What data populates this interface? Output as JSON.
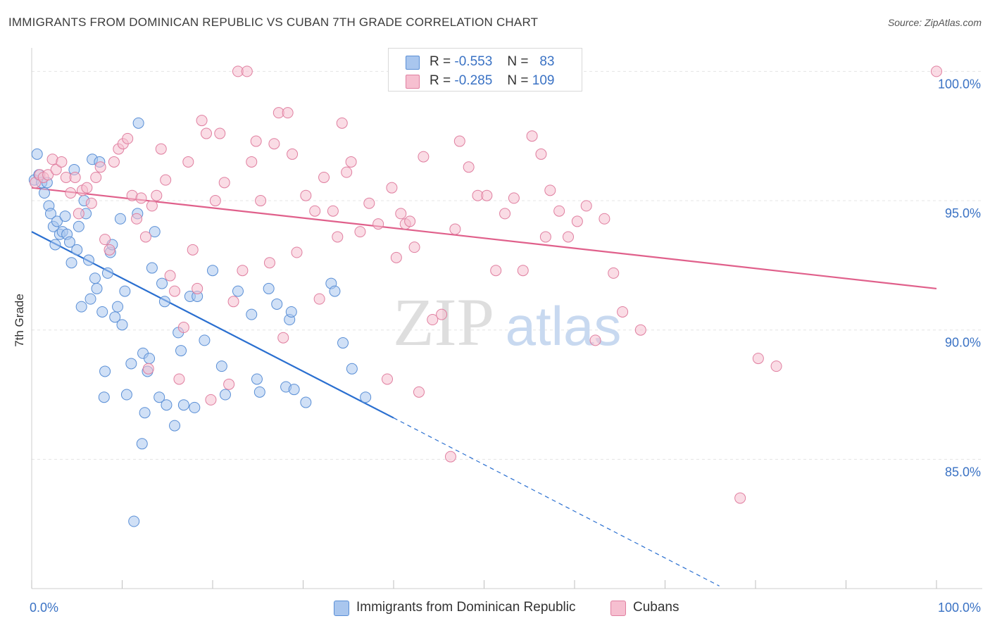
{
  "title": "IMMIGRANTS FROM DOMINICAN REPUBLIC VS CUBAN 7TH GRADE CORRELATION CHART",
  "source": "Source: ZipAtlas.com",
  "watermark": {
    "zip": "ZIP",
    "atlas": "atlas"
  },
  "legend": [
    {
      "r_label": "R =",
      "r_value": "-0.553",
      "n_label": "N =",
      "n_value": "83",
      "color": "#a9c6ee",
      "border": "#5a8fd6"
    },
    {
      "r_label": "R =",
      "r_value": "-0.285",
      "n_label": "N =",
      "n_value": "109",
      "color": "#f6bfd0",
      "border": "#e07fa0"
    }
  ],
  "chart_data": {
    "type": "scatter",
    "ylabel": "7th Grade",
    "xlabel": "",
    "xlim": [
      0,
      100
    ],
    "ylim": [
      80.0,
      100.8
    ],
    "x_tick_labels": [
      "0.0%",
      "100.0%"
    ],
    "y_ticks": [
      {
        "value": 100,
        "label": "100.0%"
      },
      {
        "value": 95,
        "label": "95.0%"
      },
      {
        "value": 90,
        "label": "90.0%"
      },
      {
        "value": 85,
        "label": "85.0%"
      }
    ],
    "series": [
      {
        "name": "Immigrants from Dominican Republic",
        "color": "#5a8fd6",
        "fill": "#a9c6ee",
        "trend": {
          "x0": 0,
          "y0": 93.8,
          "x1": 40,
          "y1": 86.6,
          "dash_to_x": 76,
          "dash_to_y": 80.1,
          "color": "#2a6fd0"
        },
        "points": [
          [
            0.3,
            95.8
          ],
          [
            0.6,
            96.8
          ],
          [
            0.8,
            96.0
          ],
          [
            1.1,
            95.7
          ],
          [
            1.4,
            95.3
          ],
          [
            1.7,
            95.7
          ],
          [
            1.9,
            94.8
          ],
          [
            2.1,
            94.5
          ],
          [
            2.4,
            94.0
          ],
          [
            2.6,
            93.3
          ],
          [
            2.8,
            94.2
          ],
          [
            3.1,
            93.7
          ],
          [
            3.4,
            93.8
          ],
          [
            3.7,
            94.4
          ],
          [
            3.9,
            93.7
          ],
          [
            4.2,
            93.4
          ],
          [
            4.4,
            92.6
          ],
          [
            4.7,
            96.2
          ],
          [
            5.0,
            93.1
          ],
          [
            5.2,
            94.0
          ],
          [
            5.5,
            90.9
          ],
          [
            5.8,
            95.0
          ],
          [
            6.0,
            94.5
          ],
          [
            6.3,
            92.7
          ],
          [
            6.5,
            91.2
          ],
          [
            6.7,
            96.6
          ],
          [
            7.0,
            92.0
          ],
          [
            7.2,
            91.6
          ],
          [
            7.5,
            96.5
          ],
          [
            7.8,
            90.7
          ],
          [
            8.1,
            88.4
          ],
          [
            8.4,
            92.2
          ],
          [
            8.7,
            93.0
          ],
          [
            8.9,
            93.3
          ],
          [
            9.2,
            90.5
          ],
          [
            9.5,
            90.9
          ],
          [
            9.8,
            94.3
          ],
          [
            10.0,
            90.2
          ],
          [
            10.3,
            91.5
          ],
          [
            10.5,
            87.5
          ],
          [
            11.0,
            88.7
          ],
          [
            11.3,
            82.6
          ],
          [
            11.7,
            94.5
          ],
          [
            11.8,
            98.0
          ],
          [
            12.2,
            85.6
          ],
          [
            12.3,
            89.1
          ],
          [
            12.5,
            86.8
          ],
          [
            12.8,
            88.4
          ],
          [
            13.0,
            88.9
          ],
          [
            13.3,
            92.4
          ],
          [
            13.6,
            93.8
          ],
          [
            14.1,
            87.4
          ],
          [
            14.4,
            91.8
          ],
          [
            14.7,
            91.1
          ],
          [
            14.9,
            87.1
          ],
          [
            15.8,
            86.3
          ],
          [
            16.2,
            89.9
          ],
          [
            16.5,
            89.2
          ],
          [
            16.8,
            87.1
          ],
          [
            17.5,
            91.3
          ],
          [
            18.0,
            87.0
          ],
          [
            18.3,
            91.3
          ],
          [
            19.1,
            89.6
          ],
          [
            20.0,
            92.3
          ],
          [
            21.0,
            88.6
          ],
          [
            21.4,
            87.5
          ],
          [
            22.8,
            91.5
          ],
          [
            24.3,
            90.6
          ],
          [
            24.9,
            88.1
          ],
          [
            25.2,
            87.6
          ],
          [
            26.2,
            91.6
          ],
          [
            27.1,
            91.0
          ],
          [
            28.1,
            87.8
          ],
          [
            28.5,
            90.4
          ],
          [
            28.7,
            90.7
          ],
          [
            29.0,
            87.7
          ],
          [
            30.3,
            87.2
          ],
          [
            33.1,
            91.8
          ],
          [
            33.5,
            91.5
          ],
          [
            34.4,
            89.5
          ],
          [
            35.4,
            88.5
          ],
          [
            36.9,
            87.4
          ],
          [
            8.0,
            87.4
          ]
        ]
      },
      {
        "name": "Cubans",
        "color": "#e07fa0",
        "fill": "#f6bfd0",
        "trend": {
          "x0": 0,
          "y0": 95.5,
          "x1": 100,
          "y1": 91.6,
          "color": "#e0608b"
        },
        "points": [
          [
            0.4,
            95.7
          ],
          [
            0.9,
            96.0
          ],
          [
            1.3,
            95.9
          ],
          [
            1.8,
            96.0
          ],
          [
            2.3,
            96.6
          ],
          [
            2.7,
            96.2
          ],
          [
            3.3,
            96.5
          ],
          [
            3.8,
            95.9
          ],
          [
            4.3,
            95.3
          ],
          [
            4.8,
            95.9
          ],
          [
            5.2,
            94.5
          ],
          [
            5.6,
            95.4
          ],
          [
            6.1,
            95.5
          ],
          [
            6.6,
            94.9
          ],
          [
            7.1,
            95.9
          ],
          [
            7.6,
            96.3
          ],
          [
            8.1,
            93.5
          ],
          [
            8.6,
            93.1
          ],
          [
            9.1,
            96.5
          ],
          [
            9.6,
            97.0
          ],
          [
            10.1,
            97.2
          ],
          [
            10.6,
            97.4
          ],
          [
            11.1,
            95.2
          ],
          [
            11.6,
            94.3
          ],
          [
            12.1,
            95.1
          ],
          [
            12.6,
            93.6
          ],
          [
            12.9,
            88.5
          ],
          [
            13.3,
            94.8
          ],
          [
            13.8,
            95.2
          ],
          [
            14.3,
            97.0
          ],
          [
            14.8,
            95.8
          ],
          [
            15.3,
            92.1
          ],
          [
            15.8,
            91.5
          ],
          [
            16.3,
            88.1
          ],
          [
            16.8,
            90.1
          ],
          [
            17.3,
            96.5
          ],
          [
            17.8,
            93.1
          ],
          [
            18.3,
            91.6
          ],
          [
            18.8,
            98.1
          ],
          [
            19.3,
            97.6
          ],
          [
            19.8,
            87.3
          ],
          [
            20.3,
            95.0
          ],
          [
            20.8,
            97.6
          ],
          [
            21.3,
            95.7
          ],
          [
            21.8,
            87.9
          ],
          [
            22.3,
            91.1
          ],
          [
            22.8,
            100.0
          ],
          [
            23.3,
            92.3
          ],
          [
            23.8,
            100.0
          ],
          [
            24.3,
            96.5
          ],
          [
            24.8,
            97.3
          ],
          [
            25.3,
            95.0
          ],
          [
            26.3,
            92.6
          ],
          [
            26.8,
            97.2
          ],
          [
            27.3,
            98.4
          ],
          [
            27.8,
            89.7
          ],
          [
            28.3,
            98.4
          ],
          [
            28.8,
            96.8
          ],
          [
            29.3,
            93.0
          ],
          [
            30.3,
            95.2
          ],
          [
            31.3,
            94.6
          ],
          [
            31.8,
            91.2
          ],
          [
            32.3,
            95.9
          ],
          [
            33.3,
            94.6
          ],
          [
            33.8,
            93.6
          ],
          [
            34.3,
            98.0
          ],
          [
            34.8,
            96.1
          ],
          [
            35.3,
            96.5
          ],
          [
            36.3,
            93.8
          ],
          [
            37.3,
            94.9
          ],
          [
            38.3,
            94.1
          ],
          [
            39.3,
            88.1
          ],
          [
            39.8,
            95.5
          ],
          [
            40.3,
            92.8
          ],
          [
            40.8,
            94.5
          ],
          [
            41.3,
            94.1
          ],
          [
            41.8,
            94.2
          ],
          [
            42.3,
            93.2
          ],
          [
            42.8,
            87.6
          ],
          [
            43.3,
            96.7
          ],
          [
            44.3,
            90.4
          ],
          [
            45.3,
            90.6
          ],
          [
            46.3,
            85.1
          ],
          [
            46.8,
            93.9
          ],
          [
            47.3,
            97.3
          ],
          [
            48.3,
            96.3
          ],
          [
            49.3,
            95.2
          ],
          [
            50.3,
            95.2
          ],
          [
            51.3,
            92.3
          ],
          [
            52.3,
            94.5
          ],
          [
            53.3,
            95.1
          ],
          [
            54.3,
            92.3
          ],
          [
            55.3,
            97.5
          ],
          [
            56.3,
            96.8
          ],
          [
            56.8,
            93.6
          ],
          [
            57.3,
            95.4
          ],
          [
            58.3,
            94.6
          ],
          [
            59.3,
            93.6
          ],
          [
            60.3,
            94.2
          ],
          [
            61.3,
            94.8
          ],
          [
            62.3,
            89.6
          ],
          [
            63.3,
            94.3
          ],
          [
            64.3,
            92.2
          ],
          [
            65.3,
            90.7
          ],
          [
            67.3,
            90.0
          ],
          [
            78.3,
            83.5
          ],
          [
            80.3,
            88.9
          ],
          [
            82.3,
            88.6
          ],
          [
            100.0,
            100.0
          ]
        ]
      }
    ]
  },
  "bottom_legend": [
    {
      "label": "Immigrants from Dominican Republic"
    },
    {
      "label": "Cubans"
    }
  ]
}
